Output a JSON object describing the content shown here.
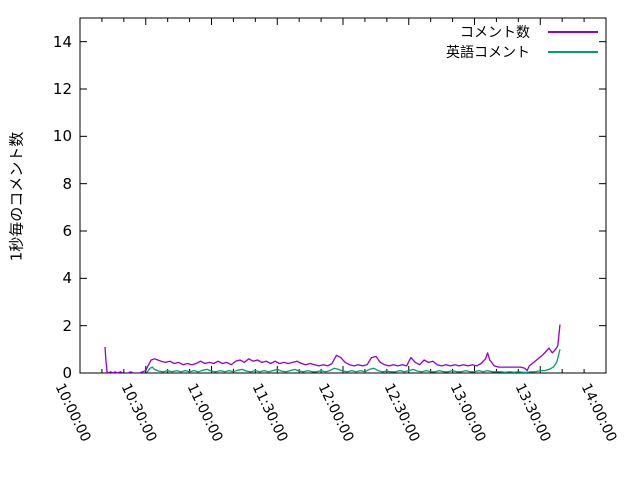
{
  "figure": {
    "background": "#ffffff",
    "border_color": "#000000",
    "text_color": "#000000"
  },
  "chart_data": {
    "type": "line",
    "title": "",
    "xlabel": "",
    "ylabel": "1秒毎のコメント数",
    "ylim": [
      0,
      15
    ],
    "yticks": [
      0,
      2,
      4,
      6,
      8,
      10,
      12,
      14
    ],
    "x_axis_is_time": true,
    "x_time_range": [
      "10:00:00",
      "14:00:00"
    ],
    "xlim_minutes": [
      0,
      240
    ],
    "xtick_minutes": [
      0,
      30,
      60,
      90,
      120,
      150,
      180,
      210,
      240
    ],
    "xtick_labels": [
      "10:00:00",
      "10:30:00",
      "11:00:00",
      "11:30:00",
      "12:00:00",
      "12:30:00",
      "13:00:00",
      "13:30:00",
      "14:00:00"
    ],
    "xminor_step_minutes": 10,
    "grid": false,
    "legend_position": "top-right-inside",
    "series": [
      {
        "name": "コメント数",
        "color": "#9400d3",
        "points": [
          [
            11.4,
            1.1
          ],
          [
            11.8,
            0.55
          ],
          [
            12.3,
            0.05
          ],
          [
            13,
            0
          ],
          [
            14,
            0.05
          ],
          [
            15,
            0
          ],
          [
            16,
            0.05
          ],
          [
            17,
            0
          ],
          [
            18.5,
            0.05
          ],
          [
            19.5,
            0
          ],
          null,
          [
            22,
            0
          ],
          [
            23,
            0.05
          ],
          [
            24.5,
            0
          ],
          null,
          [
            27,
            0
          ],
          [
            28.5,
            0.05
          ],
          [
            30,
            0.1
          ],
          [
            31,
            0.3
          ],
          [
            32.5,
            0.55
          ],
          [
            34,
            0.6
          ],
          [
            35.5,
            0.55
          ],
          [
            37,
            0.5
          ],
          [
            39,
            0.45
          ],
          [
            41,
            0.5
          ],
          [
            43,
            0.4
          ],
          [
            45,
            0.45
          ],
          [
            47,
            0.35
          ],
          [
            49,
            0.4
          ],
          [
            51,
            0.35
          ],
          [
            53,
            0.4
          ],
          [
            55,
            0.5
          ],
          [
            57,
            0.4
          ],
          [
            59,
            0.45
          ],
          [
            61,
            0.4
          ],
          [
            63,
            0.5
          ],
          [
            65,
            0.4
          ],
          [
            67,
            0.45
          ],
          [
            69,
            0.35
          ],
          [
            71,
            0.5
          ],
          [
            73,
            0.55
          ],
          [
            75,
            0.45
          ],
          [
            77,
            0.6
          ],
          [
            79,
            0.5
          ],
          [
            81,
            0.55
          ],
          [
            83,
            0.45
          ],
          [
            85,
            0.5
          ],
          [
            87,
            0.4
          ],
          [
            89,
            0.5
          ],
          [
            91,
            0.4
          ],
          [
            93,
            0.45
          ],
          [
            95,
            0.4
          ],
          [
            97,
            0.45
          ],
          [
            99,
            0.5
          ],
          [
            101,
            0.4
          ],
          [
            103,
            0.35
          ],
          [
            105,
            0.4
          ],
          [
            107,
            0.35
          ],
          [
            109,
            0.3
          ],
          [
            111,
            0.35
          ],
          [
            113,
            0.3
          ],
          [
            115,
            0.4
          ],
          [
            117,
            0.75
          ],
          [
            119,
            0.65
          ],
          [
            121,
            0.45
          ],
          [
            123,
            0.35
          ],
          [
            125,
            0.3
          ],
          [
            127,
            0.35
          ],
          [
            129,
            0.3
          ],
          [
            131,
            0.35
          ],
          [
            133,
            0.65
          ],
          [
            135,
            0.7
          ],
          [
            137,
            0.45
          ],
          [
            139,
            0.35
          ],
          [
            141,
            0.3
          ],
          [
            143,
            0.35
          ],
          [
            145,
            0.3
          ],
          [
            147,
            0.35
          ],
          [
            149,
            0.3
          ],
          [
            151,
            0.65
          ],
          [
            153,
            0.45
          ],
          [
            155,
            0.35
          ],
          [
            157,
            0.55
          ],
          [
            159,
            0.45
          ],
          [
            161,
            0.5
          ],
          [
            163,
            0.35
          ],
          [
            165,
            0.3
          ],
          [
            167,
            0.35
          ],
          [
            169,
            0.3
          ],
          [
            171,
            0.35
          ],
          [
            173,
            0.3
          ],
          [
            175,
            0.35
          ],
          [
            177,
            0.3
          ],
          [
            179,
            0.35
          ],
          [
            181,
            0.3
          ],
          [
            183,
            0.4
          ],
          [
            185,
            0.6
          ],
          [
            186,
            0.85
          ],
          [
            187,
            0.55
          ],
          [
            189,
            0.3
          ],
          [
            191,
            0.25
          ],
          [
            193,
            0.25
          ],
          [
            195,
            0.25
          ],
          [
            197,
            0.25
          ],
          [
            199,
            0.25
          ],
          [
            201,
            0.25
          ],
          [
            203,
            0.2
          ],
          [
            204,
            0.1
          ],
          [
            205,
            0.3
          ],
          [
            207,
            0.45
          ],
          [
            209,
            0.6
          ],
          [
            211,
            0.75
          ],
          [
            213,
            0.95
          ],
          [
            214,
            1.05
          ],
          [
            215.5,
            0.85
          ],
          [
            217,
            1.0
          ],
          [
            218,
            1.15
          ],
          [
            219,
            2.05
          ]
        ]
      },
      {
        "name": "英語コメント",
        "color": "#009e73",
        "points": [
          [
            30.5,
            0.02
          ],
          [
            32,
            0.2
          ],
          [
            33,
            0.25
          ],
          [
            34,
            0.15
          ],
          [
            36,
            0.08
          ],
          [
            38,
            0.05
          ],
          [
            40,
            0.1
          ],
          [
            42,
            0.05
          ],
          [
            44,
            0.1
          ],
          [
            46,
            0.05
          ],
          [
            48,
            0.1
          ],
          [
            50,
            0.05
          ],
          [
            52,
            0.1
          ],
          [
            54,
            0.05
          ],
          [
            56,
            0.12
          ],
          [
            58,
            0.15
          ],
          [
            60,
            0.08
          ],
          [
            62,
            0.05
          ],
          [
            64,
            0.1
          ],
          [
            66,
            0.05
          ],
          [
            68,
            0.1
          ],
          [
            70,
            0.05
          ],
          [
            72,
            0.12
          ],
          [
            74,
            0.15
          ],
          [
            76,
            0.08
          ],
          [
            78,
            0.05
          ],
          [
            80,
            0.1
          ],
          [
            82,
            0.05
          ],
          [
            84,
            0.1
          ],
          [
            86,
            0.05
          ],
          [
            88,
            0.1
          ],
          [
            90,
            0.15
          ],
          [
            92,
            0.08
          ],
          [
            94,
            0.05
          ],
          [
            96,
            0.1
          ],
          [
            98,
            0.15
          ],
          [
            100,
            0.08
          ],
          [
            102,
            0.05
          ],
          [
            104,
            0.1
          ],
          [
            106,
            0.05
          ],
          [
            108,
            0.05
          ],
          [
            110,
            0.1
          ],
          [
            112,
            0.05
          ],
          [
            114,
            0.1
          ],
          [
            116,
            0.2
          ],
          [
            118,
            0.15
          ],
          [
            120,
            0.08
          ],
          [
            122,
            0.05
          ],
          [
            124,
            0.1
          ],
          [
            126,
            0.05
          ],
          [
            128,
            0.1
          ],
          [
            130,
            0.05
          ],
          [
            132,
            0.15
          ],
          [
            134,
            0.2
          ],
          [
            136,
            0.1
          ],
          [
            138,
            0.05
          ],
          [
            140,
            0.08
          ],
          [
            142,
            0.05
          ],
          [
            144,
            0.05
          ],
          [
            146,
            0.1
          ],
          [
            148,
            0.05
          ],
          [
            150,
            0.1
          ],
          [
            152,
            0.15
          ],
          [
            154,
            0.08
          ],
          [
            156,
            0.05
          ],
          [
            158,
            0.1
          ],
          [
            160,
            0.05
          ],
          [
            162,
            0.05
          ],
          [
            164,
            0.1
          ],
          [
            166,
            0.05
          ],
          [
            168,
            0.05
          ],
          [
            170,
            0.1
          ],
          [
            172,
            0.05
          ],
          [
            174,
            0.05
          ],
          [
            176,
            0.1
          ],
          [
            178,
            0.05
          ],
          [
            180,
            0.05
          ],
          [
            182,
            0.1
          ],
          [
            184,
            0.05
          ],
          [
            186,
            0.1
          ],
          [
            188,
            0.05
          ],
          [
            190,
            0.05
          ],
          [
            192,
            0.05
          ],
          [
            194,
            0.03
          ],
          [
            196,
            0.05
          ],
          [
            198,
            0.03
          ],
          [
            200,
            0.05
          ],
          [
            202,
            0.03
          ],
          [
            204,
            0.03
          ],
          [
            206,
            0.05
          ],
          [
            208,
            0.06
          ],
          [
            210,
            0.1
          ],
          [
            212,
            0.1
          ],
          [
            214,
            0.15
          ],
          [
            216,
            0.25
          ],
          [
            217.5,
            0.45
          ],
          [
            219,
            1.0
          ]
        ]
      }
    ]
  }
}
